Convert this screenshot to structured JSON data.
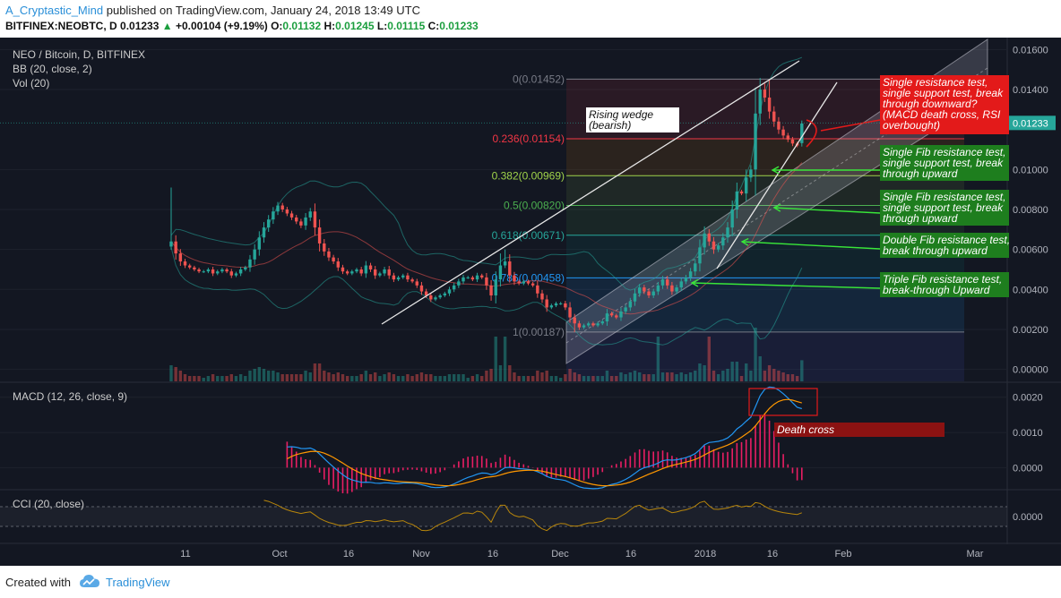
{
  "header": {
    "author": "A_Cryptastic_Mind",
    "published": "published on TradingView.com, January 24, 2018 13:49 UTC",
    "symbol_line": "BITFINEX:NEOBTC, D",
    "price": "0.01233",
    "change_arrow": "▲",
    "change": "+0.00104 (+9.19%)",
    "o_label": "O:",
    "o": "0.01132",
    "h_label": "H:",
    "h": "0.01245",
    "l_label": "L:",
    "l": "0.01115",
    "c_label": "C:",
    "c": "0.01233"
  },
  "legends": {
    "pair": "NEO / Bitcoin, D, BITFINEX",
    "bb": "BB (20, close, 2)",
    "vol": "Vol (20)",
    "macd": "MACD (12, 26, close, 9)",
    "cci": "CCI (20, close)"
  },
  "colors": {
    "background": "#131722",
    "up": "#26a69a",
    "down": "#ef5350",
    "annotation_red": "#e31a1a",
    "annotation_green": "#1e7e1e",
    "death_cross_bg": "#8b1212"
  },
  "chart_data": [
    {
      "type": "candlestick",
      "panel": "price",
      "title": "NEO / Bitcoin, D, BITFINEX",
      "y_axis_ticks": [
        "0.01600",
        "0.01400",
        "0.01233",
        "0.01000",
        "0.00800",
        "0.00600",
        "0.00400",
        "0.00200",
        "0.00000"
      ],
      "ylim": [
        -0.0006,
        0.0166
      ],
      "x_axis_ticks": [
        "11",
        "Oct",
        "16",
        "Nov",
        "16",
        "Dec",
        "16",
        "2018",
        "16",
        "Feb",
        "Mar"
      ],
      "last_price": "0.01233",
      "close_series": [
        0.0064,
        0.0058,
        0.0054,
        0.0052,
        0.0051,
        0.005,
        0.0049,
        0.0049,
        0.005,
        0.0048,
        0.0049,
        0.005,
        0.0049,
        0.0047,
        0.0048,
        0.005,
        0.0051,
        0.0055,
        0.006,
        0.0066,
        0.0071,
        0.0075,
        0.0079,
        0.0082,
        0.008,
        0.0078,
        0.0076,
        0.0074,
        0.0072,
        0.0076,
        0.0079,
        0.0071,
        0.0063,
        0.0059,
        0.0056,
        0.0054,
        0.0051,
        0.0049,
        0.0048,
        0.0049,
        0.005,
        0.0048,
        0.0052,
        0.005,
        0.0047,
        0.0048,
        0.005,
        0.0047,
        0.0045,
        0.0046,
        0.0047,
        0.0045,
        0.0044,
        0.0042,
        0.0039,
        0.0037,
        0.0035,
        0.0036,
        0.0037,
        0.0038,
        0.004,
        0.0042,
        0.0044,
        0.0046,
        0.0046,
        0.0045,
        0.0047,
        0.0046,
        0.0042,
        0.0037,
        0.0045,
        0.0052,
        0.0054,
        0.0047,
        0.0044,
        0.0043,
        0.0044,
        0.0043,
        0.0042,
        0.0038,
        0.0035,
        0.0031,
        0.0032,
        0.0033,
        0.0033,
        0.0031,
        0.0026,
        0.0023,
        0.0021,
        0.0022,
        0.0023,
        0.0022,
        0.0023,
        0.0024,
        0.0028,
        0.0027,
        0.0026,
        0.0029,
        0.0031,
        0.0034,
        0.0038,
        0.0041,
        0.0039,
        0.0037,
        0.0039,
        0.0042,
        0.0045,
        0.0042,
        0.0039,
        0.0041,
        0.0044,
        0.0046,
        0.0049,
        0.0053,
        0.0061,
        0.0068,
        0.0064,
        0.006,
        0.0062,
        0.0066,
        0.0071,
        0.008,
        0.0089,
        0.0088,
        0.0096,
        0.01,
        0.0128,
        0.014,
        0.0136,
        0.0129,
        0.0124,
        0.012,
        0.0117,
        0.0115,
        0.0113,
        0.0112,
        0.0123
      ],
      "bollinger_bands": {
        "period": 20,
        "source": "close",
        "stddev": 2
      },
      "fibonacci_levels": [
        {
          "label": "0(0.01452)",
          "value": 0.01452
        },
        {
          "label": "0.236(0.01154)",
          "value": 0.01154
        },
        {
          "label": "0.382(0.00969)",
          "value": 0.00969
        },
        {
          "label": "0.5(0.00820)",
          "value": 0.0082
        },
        {
          "label": "0.618(0.00671)",
          "value": 0.00671
        },
        {
          "label": "0.786(0.00458)",
          "value": 0.00458
        },
        {
          "label": "1(0.00187)",
          "value": 0.00187
        }
      ]
    },
    {
      "type": "histogram",
      "panel": "volume",
      "title": "Vol (20)"
    },
    {
      "type": "line",
      "panel": "macd",
      "title": "MACD (12, 26, close, 9)",
      "y_axis_ticks": [
        "0.0020",
        "0.0010",
        "0.0000"
      ],
      "ylim": [
        -0.0006,
        0.0024
      ]
    },
    {
      "type": "line",
      "panel": "cci",
      "title": "CCI (20, close)",
      "y_axis_ticks": [
        "0.0000"
      ]
    }
  ],
  "annotations": {
    "rising_wedge": [
      "Rising wedge",
      "(bearish)"
    ],
    "red_note": [
      "Single resistance test,",
      "single support test, break",
      "through downward?",
      "(MACD death cross, RSI",
      "overbought)"
    ],
    "green_1": [
      "Single Fib resistance test,",
      "single support test, break",
      "through upward"
    ],
    "green_2": [
      "Single Fib resistance test,",
      "single support test, break",
      "through upward"
    ],
    "green_3": [
      "Double Fib resistance test,",
      "break through upward"
    ],
    "green_4": [
      "Triple Fib resistance test,",
      "break-through Upward"
    ],
    "death_cross": "Death cross"
  },
  "footer": {
    "created_with": "Created with",
    "brand": "TradingView"
  }
}
